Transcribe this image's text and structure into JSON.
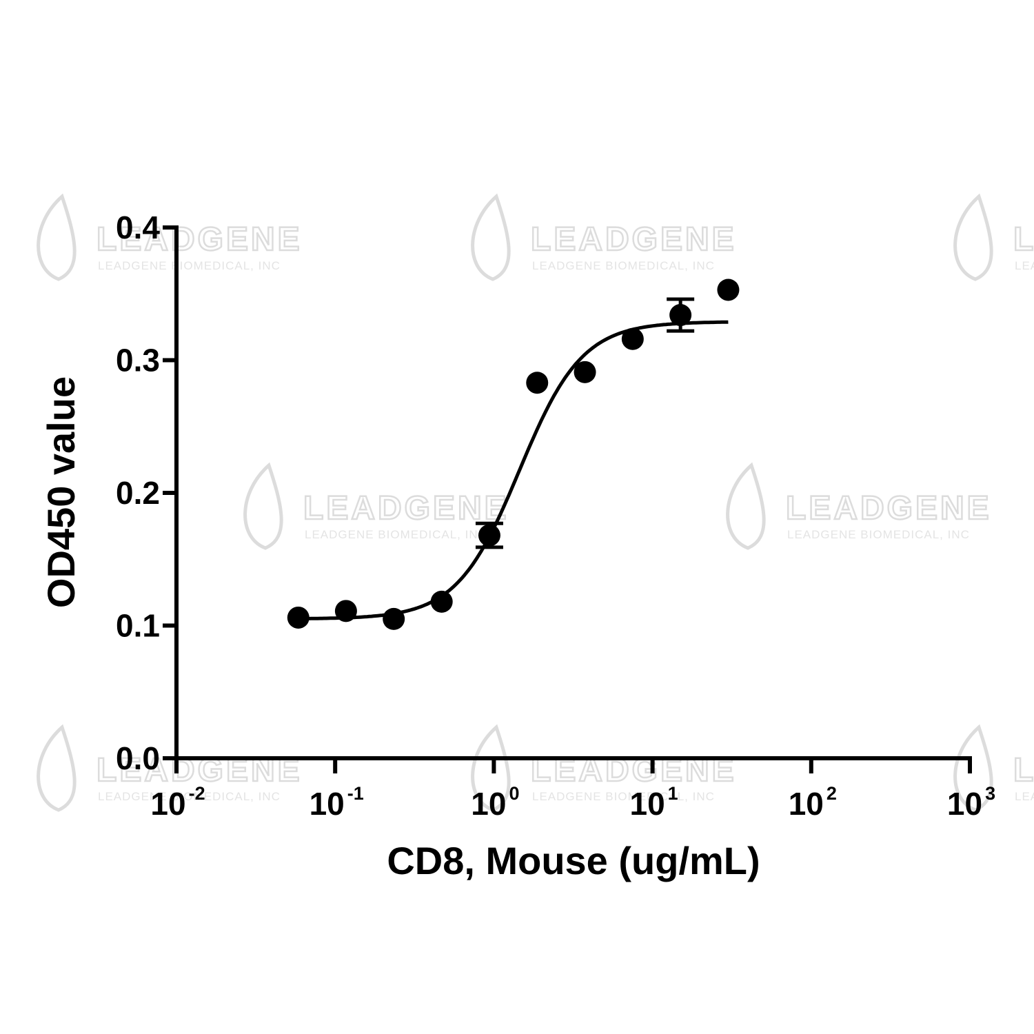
{
  "chart_data": {
    "type": "scatter",
    "title": "",
    "xlabel": "CD8, Mouse (ug/mL)",
    "ylabel": "OD450 value",
    "x_scale": "log",
    "xlim": [
      0.01,
      1000
    ],
    "ylim": [
      0,
      0.4
    ],
    "x_ticks": [
      {
        "base": "10",
        "exp": "-2",
        "value": 0.01
      },
      {
        "base": "10",
        "exp": "-1",
        "value": 0.1
      },
      {
        "base": "10",
        "exp": "0",
        "value": 1
      },
      {
        "base": "10",
        "exp": "1",
        "value": 10
      },
      {
        "base": "10",
        "exp": "2",
        "value": 100
      },
      {
        "base": "10",
        "exp": "3",
        "value": 1000
      }
    ],
    "y_ticks": [
      "0.0",
      "0.1",
      "0.2",
      "0.3",
      "0.4"
    ],
    "grid": false,
    "series": [
      {
        "x": [
          0.0586,
          0.117,
          0.234,
          0.469,
          0.9375,
          1.875,
          3.75,
          7.5,
          15,
          30
        ],
        "y": [
          0.106,
          0.111,
          0.105,
          0.118,
          0.168,
          0.283,
          0.291,
          0.316,
          0.334,
          0.353
        ],
        "error": [
          0,
          0,
          0,
          0,
          0.009,
          0,
          0,
          0,
          0.012,
          0
        ]
      }
    ],
    "fit_curve": {
      "model": "4PL",
      "bottom": 0.105,
      "top": 0.329,
      "ec50": 1.45,
      "hill": 2.2,
      "x_range": [
        0.0586,
        30
      ]
    },
    "watermark": {
      "brand": "LEADGENE",
      "subtitle": "LEADGENE BIOMEDICAL, INC"
    }
  }
}
